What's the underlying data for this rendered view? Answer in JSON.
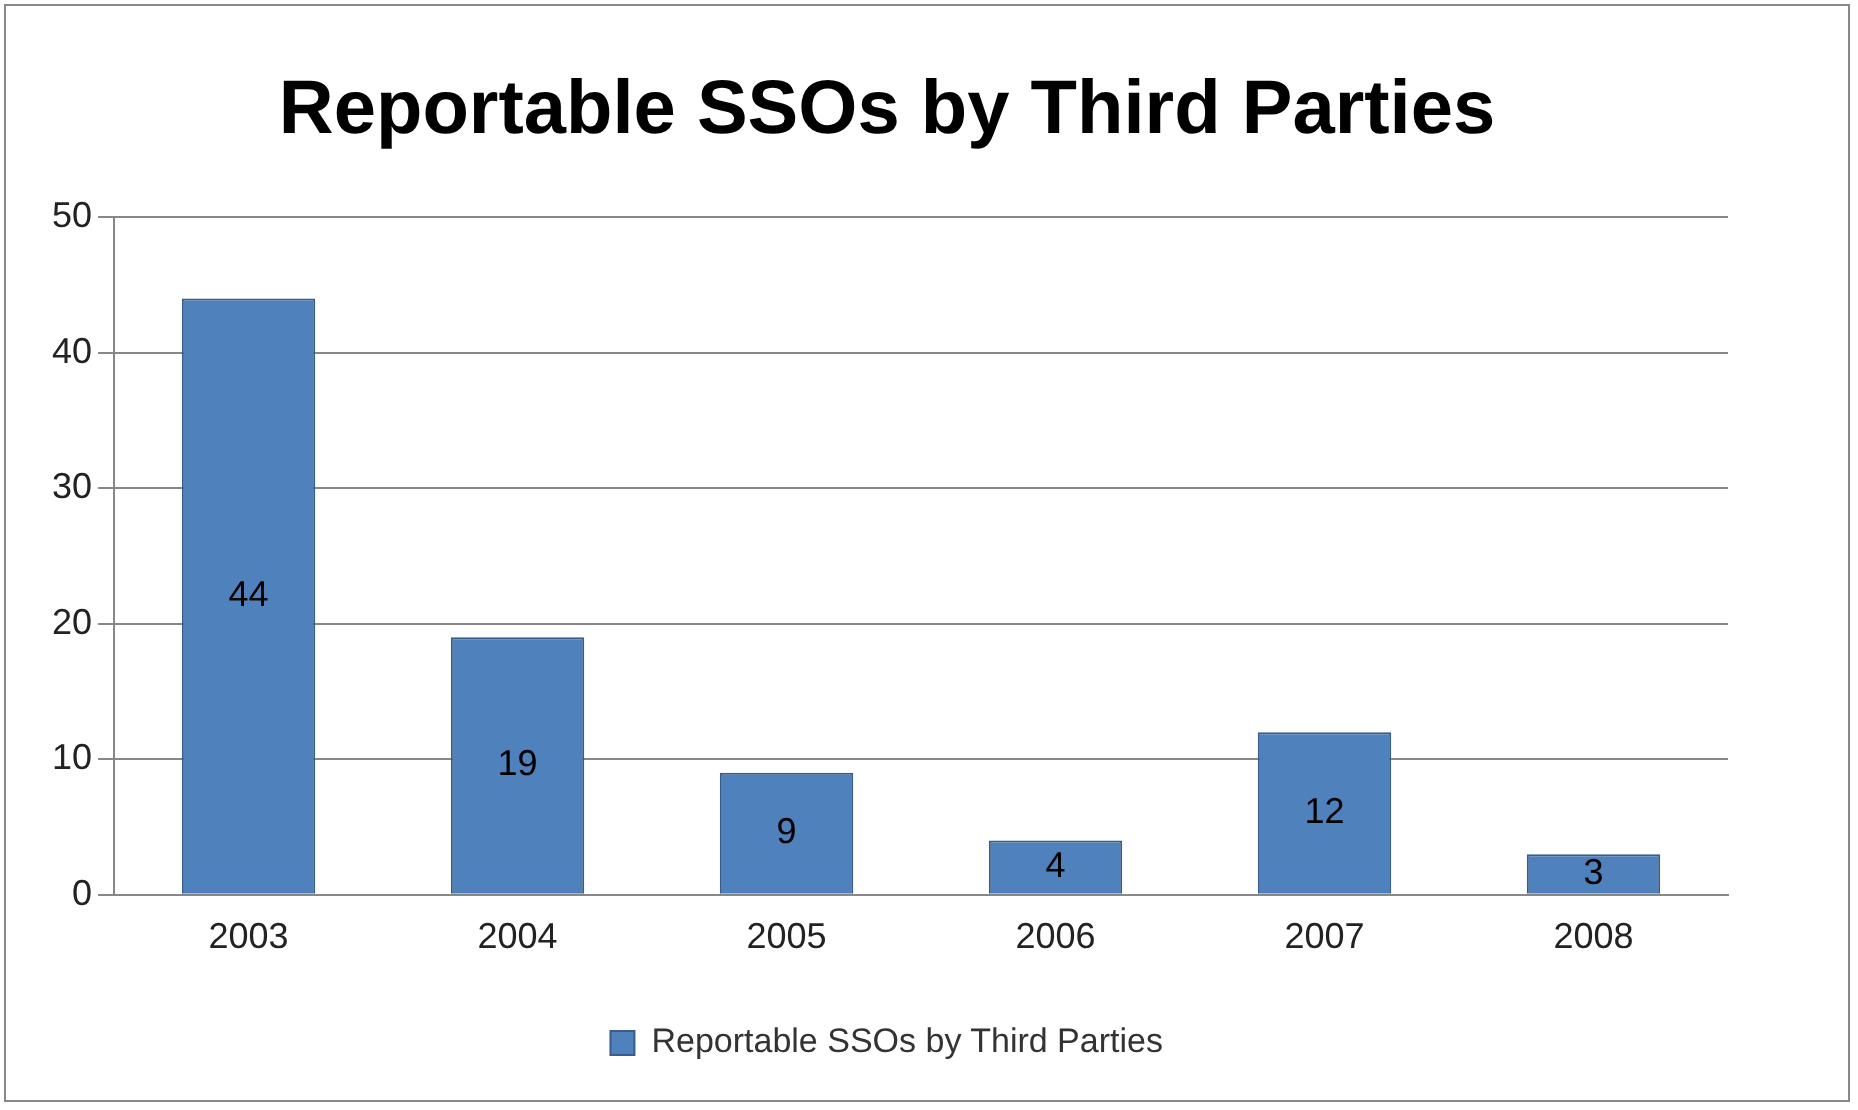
{
  "chart_data": {
    "type": "bar",
    "title": "Reportable SSOs by Third Parties",
    "categories": [
      "2003",
      "2004",
      "2005",
      "2006",
      "2007",
      "2008"
    ],
    "series": [
      {
        "name": "Reportable SSOs by Third Parties",
        "color": "#4f81bd",
        "values": [
          44,
          19,
          9,
          4,
          12,
          3
        ]
      }
    ],
    "ylim": [
      0,
      50
    ],
    "yticks": [
      0,
      10,
      20,
      30,
      40,
      50
    ],
    "grid": "y",
    "legend": "bottom",
    "data_labels": true
  }
}
